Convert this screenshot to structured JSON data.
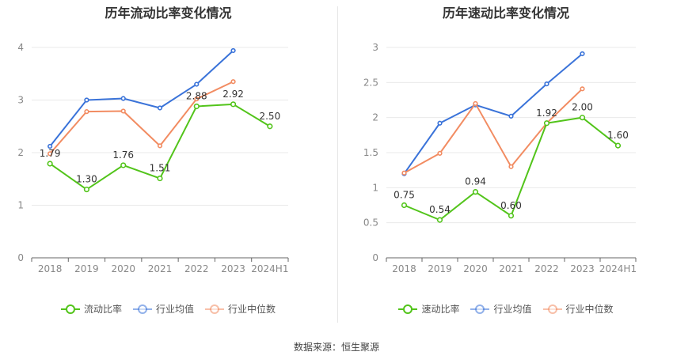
{
  "source": "数据来源：恒生聚源",
  "chart_data": [
    {
      "type": "line",
      "title": "历年流动比率变化情况",
      "categories": [
        "2018",
        "2019",
        "2020",
        "2021",
        "2022",
        "2023",
        "2024H1"
      ],
      "ylim": [
        0,
        4
      ],
      "yticks": [
        "0",
        "1",
        "2",
        "3",
        "4"
      ],
      "grid": true,
      "legend_position": "bottom",
      "series": [
        {
          "name": "流动比率",
          "color": "#52c41a",
          "values": [
            1.79,
            1.3,
            1.76,
            1.51,
            2.88,
            2.92,
            2.5
          ],
          "data_labels": [
            "1.79",
            "1.30",
            "1.76",
            "1.51",
            "2.88",
            "2.92",
            "2.50"
          ],
          "highlight": true
        },
        {
          "name": "行业均值",
          "color": "#3a73d9",
          "values": [
            2.12,
            3.0,
            3.03,
            2.85,
            3.3,
            3.94,
            null
          ],
          "highlight": false
        },
        {
          "name": "行业中位数",
          "color": "#f28c62",
          "values": [
            1.98,
            2.78,
            2.79,
            2.13,
            3.02,
            3.35,
            null
          ],
          "highlight": false
        }
      ]
    },
    {
      "type": "line",
      "title": "历年速动比率变化情况",
      "categories": [
        "2018",
        "2019",
        "2020",
        "2021",
        "2022",
        "2023",
        "2024H1"
      ],
      "ylim": [
        0,
        3
      ],
      "yticks": [
        "0",
        "0.5",
        "1",
        "1.5",
        "2",
        "2.5",
        "3"
      ],
      "grid": true,
      "legend_position": "bottom",
      "series": [
        {
          "name": "速动比率",
          "color": "#52c41a",
          "values": [
            0.75,
            0.54,
            0.94,
            0.6,
            1.92,
            2.0,
            1.6
          ],
          "data_labels": [
            "0.75",
            "0.54",
            "0.94",
            "0.60",
            "1.92",
            "2.00",
            "1.60"
          ],
          "highlight": true
        },
        {
          "name": "行业均值",
          "color": "#3a73d9",
          "values": [
            1.2,
            1.92,
            2.18,
            2.02,
            2.48,
            2.91,
            null
          ],
          "highlight": false
        },
        {
          "name": "行业中位数",
          "color": "#f28c62",
          "values": [
            1.21,
            1.49,
            2.2,
            1.3,
            1.92,
            2.41,
            null
          ],
          "highlight": false
        }
      ]
    }
  ]
}
